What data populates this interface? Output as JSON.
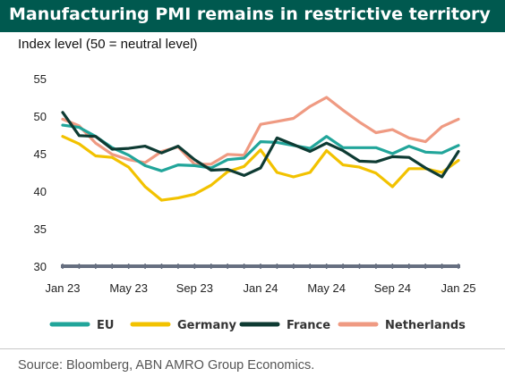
{
  "title": "Manufacturing PMI remains in restrictive territory",
  "subtitle": "Index level (50 = neutral level)",
  "source": "Source: Bloomberg, ABN AMRO Group Economics.",
  "colors": {
    "title_bg": "#00594f",
    "EU": "#21a59a",
    "Germany": "#f2c200",
    "France": "#0e3b33",
    "Netherlands": "#ef9a82",
    "axis": "#666f80"
  },
  "chart_data": {
    "type": "line",
    "title": "Manufacturing PMI remains in restrictive territory",
    "ylabel": "Index level (50 = neutral level)",
    "ylim": [
      30,
      55
    ],
    "yticks": [
      30,
      35,
      40,
      45,
      50,
      55
    ],
    "x_tick_labels": [
      "Jan 23",
      "May 23",
      "Sep 23",
      "Jan 24",
      "May 24",
      "Sep 24",
      "Jan 25"
    ],
    "x_tick_positions": [
      "2023-01",
      "2023-05",
      "2023-09",
      "2024-01",
      "2024-05",
      "2024-09",
      "2025-01"
    ],
    "x": [
      "2023-01",
      "2023-02",
      "2023-03",
      "2023-04",
      "2023-05",
      "2023-06",
      "2023-07",
      "2023-08",
      "2023-09",
      "2023-10",
      "2023-11",
      "2023-12",
      "2024-01",
      "2024-02",
      "2024-03",
      "2024-04",
      "2024-05",
      "2024-06",
      "2024-07",
      "2024-08",
      "2024-09",
      "2024-10",
      "2024-11",
      "2024-12",
      "2025-01"
    ],
    "grid": false,
    "legend_position": "bottom",
    "series": [
      {
        "name": "EU",
        "values": [
          48.8,
          48.5,
          47.3,
          45.8,
          44.8,
          43.4,
          42.7,
          43.5,
          43.4,
          43.1,
          44.2,
          44.4,
          46.6,
          46.5,
          46.1,
          45.7,
          47.3,
          45.8,
          45.8,
          45.8,
          45.0,
          46.0,
          45.2,
          45.1,
          46.1
        ]
      },
      {
        "name": "Germany",
        "values": [
          47.3,
          46.3,
          44.7,
          44.5,
          43.2,
          40.6,
          38.8,
          39.1,
          39.6,
          40.8,
          42.6,
          43.3,
          45.5,
          42.5,
          41.9,
          42.5,
          45.4,
          43.5,
          43.2,
          42.4,
          40.6,
          43.0,
          43.0,
          42.5,
          44.1
        ]
      },
      {
        "name": "France",
        "values": [
          50.5,
          47.4,
          47.3,
          45.6,
          45.7,
          46.0,
          45.1,
          46.0,
          44.2,
          42.8,
          42.9,
          42.1,
          43.1,
          47.1,
          46.2,
          45.3,
          46.4,
          45.4,
          44.0,
          43.9,
          44.6,
          44.5,
          43.1,
          41.9,
          45.3
        ]
      },
      {
        "name": "Netherlands",
        "values": [
          49.6,
          48.7,
          46.4,
          44.9,
          44.2,
          43.8,
          45.3,
          45.9,
          43.6,
          43.6,
          44.9,
          44.8,
          48.9,
          49.3,
          49.7,
          51.3,
          52.5,
          50.8,
          49.2,
          47.8,
          48.2,
          47.1,
          46.6,
          48.6,
          49.6
        ]
      }
    ]
  }
}
